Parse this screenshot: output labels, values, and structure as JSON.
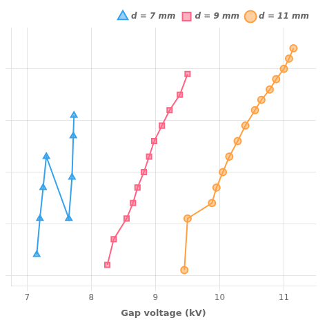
{
  "chart_data": {
    "type": "line",
    "x_label": "Gap voltage (kV)",
    "series": [
      {
        "name": "d = 7 mm",
        "marker": "triangle",
        "x": [
          7.15,
          7.2,
          7.25,
          7.3,
          7.65,
          7.7,
          7.72,
          7.73
        ],
        "values": [
          2.0,
          5.5,
          8.5,
          11.5,
          5.5,
          9.5,
          13.5,
          15.5
        ]
      },
      {
        "name": "d = 9 mm",
        "marker": "square",
        "x": [
          8.25,
          8.35,
          8.55,
          8.65,
          8.72,
          8.82,
          8.9,
          8.98,
          9.1,
          9.22,
          9.38,
          9.5
        ],
        "values": [
          1.0,
          3.5,
          5.5,
          7.0,
          8.5,
          10.0,
          11.5,
          13.0,
          14.5,
          16.0,
          17.5,
          19.5
        ]
      },
      {
        "name": "d = 11 mm",
        "marker": "circle",
        "x": [
          9.45,
          9.5,
          9.88,
          9.95,
          10.05,
          10.15,
          10.28,
          10.4,
          10.55,
          10.65,
          10.78,
          10.88,
          11.0,
          11.08,
          11.15
        ],
        "values": [
          0.5,
          5.5,
          7.0,
          8.5,
          10.0,
          11.5,
          13.0,
          14.5,
          16.0,
          17.0,
          18.0,
          19.0,
          20.0,
          21.0,
          22.0
        ]
      }
    ],
    "xlim": [
      6.75,
      11.5
    ],
    "xticks": [
      7,
      8,
      9,
      10,
      11
    ],
    "ylim": [
      -1,
      24
    ],
    "yticks": [
      0,
      5,
      10,
      15,
      20
    ],
    "tick_labels": "x",
    "grid": true,
    "legend": "upper right"
  }
}
